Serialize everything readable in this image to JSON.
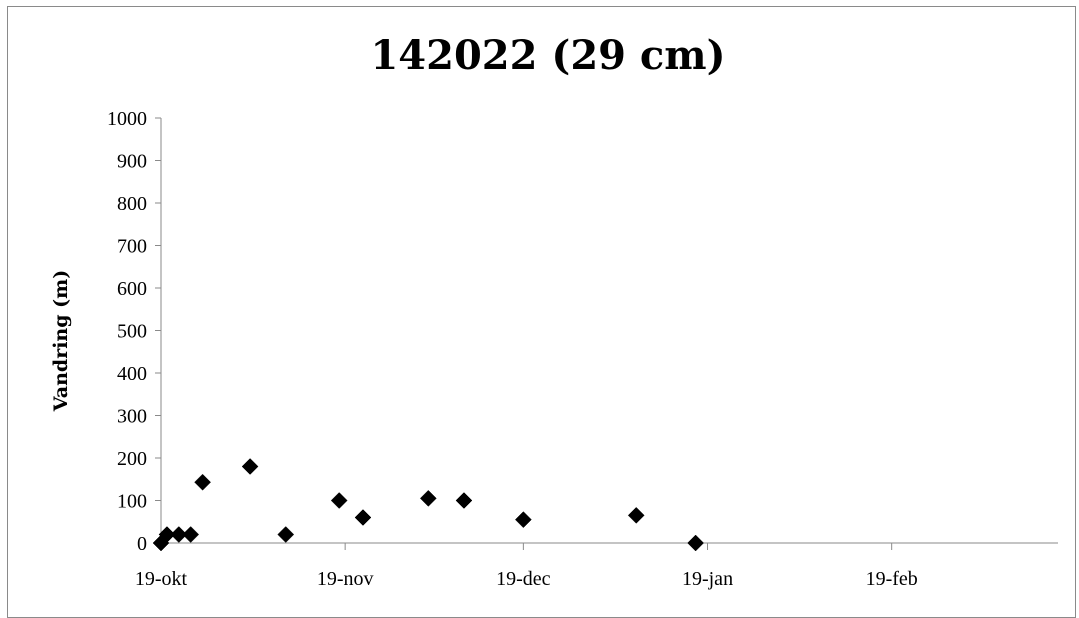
{
  "chart_data": {
    "type": "scatter",
    "title": "142022 (29 cm)",
    "ylabel": "Vandring (m)",
    "xlabel": "",
    "x_tick_labels": [
      "19-okt",
      "19-nov",
      "19-dec",
      "19-jan",
      "19-feb"
    ],
    "x_tick_dates": [
      "2000-10-19",
      "2000-11-19",
      "2000-12-19",
      "2001-01-19",
      "2001-02-19"
    ],
    "xlim": [
      "2000-10-19",
      "2001-03-19"
    ],
    "ylim": [
      0,
      1000
    ],
    "y_ticks": [
      0,
      100,
      200,
      300,
      400,
      500,
      600,
      700,
      800,
      900,
      1000
    ],
    "grid": false,
    "marker": "diamond",
    "marker_color": "#000000",
    "points": [
      {
        "x": "2000-10-19",
        "y": 0
      },
      {
        "x": "2000-10-20",
        "y": 20
      },
      {
        "x": "2000-10-22",
        "y": 20
      },
      {
        "x": "2000-10-24",
        "y": 20
      },
      {
        "x": "2000-10-26",
        "y": 143
      },
      {
        "x": "2000-11-03",
        "y": 180
      },
      {
        "x": "2000-11-09",
        "y": 20
      },
      {
        "x": "2000-11-18",
        "y": 100
      },
      {
        "x": "2000-11-22",
        "y": 60
      },
      {
        "x": "2000-12-03",
        "y": 105
      },
      {
        "x": "2000-12-09",
        "y": 100
      },
      {
        "x": "2000-12-19",
        "y": 55
      },
      {
        "x": "2001-01-07",
        "y": 65
      },
      {
        "x": "2001-01-17",
        "y": 0
      }
    ]
  }
}
